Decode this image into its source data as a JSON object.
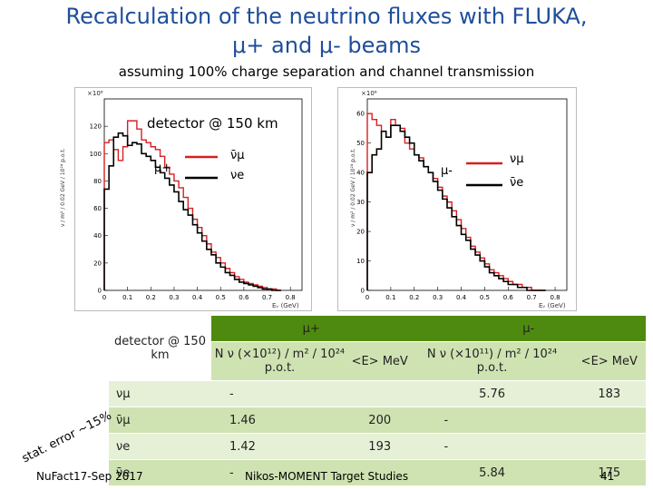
{
  "title_line1": "Recalculation of the neutrino fluxes with FLUKA,",
  "title_line2": "μ+ and μ- beams",
  "subtitle": "assuming 100% charge separation and channel transmission",
  "detector_note": "detector @ 150 km",
  "left_plot": {
    "exponent": "×10⁶",
    "ylabel": "ν / m² / 0.02 GeV / 10²⁴ p.o.t.",
    "xlabel": "Eᵥ (GeV)",
    "beam": "μ+",
    "legend": [
      "ν̄μ",
      "νe"
    ],
    "y_ticks": [
      "0",
      "20",
      "40",
      "60",
      "80",
      "100",
      "120"
    ],
    "x_ticks": [
      "0",
      "0.1",
      "0.2",
      "0.3",
      "0.4",
      "0.5",
      "0.6",
      "0.7",
      "0.8"
    ]
  },
  "right_plot": {
    "exponent": "×10⁶",
    "ylabel": "ν / m² / 0.02 GeV / 10²⁴ p.o.t.",
    "xlabel": "Eᵥ (GeV)",
    "beam": "μ-",
    "legend": [
      "νμ",
      "ν̄e"
    ],
    "y_ticks": [
      "0",
      "10",
      "20",
      "30",
      "40",
      "50",
      "60"
    ],
    "x_ticks": [
      "0",
      "0.1",
      "0.2",
      "0.3",
      "0.4",
      "0.5",
      "0.6",
      "0.7",
      "0.8"
    ]
  },
  "chart_data": [
    {
      "type": "line",
      "xlabel": "Eᵥ (GeV)",
      "ylabel": "ν / m² / 0.02 GeV / 10²⁴ p.o.t.",
      "xlim": [
        0,
        0.85
      ],
      "ylim": [
        0,
        140
      ],
      "x": [
        0.01,
        0.03,
        0.05,
        0.07,
        0.09,
        0.11,
        0.13,
        0.15,
        0.17,
        0.19,
        0.21,
        0.23,
        0.25,
        0.27,
        0.29,
        0.31,
        0.33,
        0.35,
        0.37,
        0.39,
        0.41,
        0.43,
        0.45,
        0.47,
        0.49,
        0.51,
        0.53,
        0.55,
        0.57,
        0.59,
        0.61,
        0.63,
        0.65,
        0.67,
        0.69,
        0.71,
        0.73,
        0.75
      ],
      "series": [
        {
          "name": "ν̄μ",
          "color": "#d62020",
          "values": [
            108,
            110,
            103,
            95,
            105,
            124,
            124,
            118,
            110,
            108,
            105,
            103,
            98,
            90,
            85,
            80,
            75,
            68,
            60,
            52,
            46,
            40,
            34,
            28,
            24,
            20,
            16,
            13,
            10,
            8,
            6,
            5,
            4,
            3,
            2,
            1,
            1,
            0
          ]
        },
        {
          "name": "νe",
          "color": "#000000",
          "values": [
            74,
            91,
            112,
            115,
            113,
            106,
            108,
            107,
            100,
            98,
            95,
            90,
            86,
            82,
            77,
            72,
            65,
            59,
            55,
            48,
            42,
            36,
            30,
            26,
            20,
            17,
            13,
            11,
            8,
            6,
            5,
            4,
            3,
            2,
            1,
            1,
            0,
            0
          ]
        }
      ]
    },
    {
      "type": "line",
      "xlabel": "Eᵥ (GeV)",
      "ylabel": "ν / m² / 0.02 GeV / 10²⁴ p.o.t.",
      "xlim": [
        0,
        0.85
      ],
      "ylim": [
        0,
        65
      ],
      "x": [
        0.01,
        0.03,
        0.05,
        0.07,
        0.09,
        0.11,
        0.13,
        0.15,
        0.17,
        0.19,
        0.21,
        0.23,
        0.25,
        0.27,
        0.29,
        0.31,
        0.33,
        0.35,
        0.37,
        0.39,
        0.41,
        0.43,
        0.45,
        0.47,
        0.49,
        0.51,
        0.53,
        0.55,
        0.57,
        0.59,
        0.61,
        0.63,
        0.65,
        0.67,
        0.69,
        0.71,
        0.73,
        0.75
      ],
      "series": [
        {
          "name": "νμ",
          "color": "#d62020",
          "values": [
            60,
            58,
            56,
            54,
            52,
            58,
            56,
            55,
            50,
            48,
            46,
            45,
            42,
            40,
            38,
            35,
            32,
            30,
            27,
            24,
            21,
            18,
            15,
            13,
            11,
            9,
            7,
            6,
            5,
            4,
            3,
            2,
            2,
            1,
            1,
            0,
            0,
            0
          ]
        },
        {
          "name": "ν̄e",
          "color": "#000000",
          "values": [
            40,
            46,
            48,
            54,
            52,
            56,
            56,
            54,
            52,
            50,
            46,
            44,
            42,
            40,
            37,
            34,
            31,
            28,
            25,
            22,
            19,
            17,
            14,
            12,
            10,
            8,
            6,
            5,
            4,
            3,
            2,
            2,
            1,
            1,
            0,
            0,
            0,
            0
          ]
        }
      ]
    }
  ],
  "table": {
    "corner": "detector @ 150 km",
    "beam_plus": "μ+",
    "beam_minus": "μ-",
    "col_n": "N ν (×10¹²) / m² / 10²⁴ p.o.t.",
    "col_n_minus": "N ν (×10¹¹) / m² / 10²⁴ p.o.t.",
    "col_e": "<E> MeV",
    "rows": [
      {
        "label": "νμ",
        "n_plus": "-",
        "e_plus": "",
        "n_minus": "5.76",
        "e_minus": "183"
      },
      {
        "label": "ν̄μ",
        "n_plus": "1.46",
        "e_plus": "200",
        "n_minus": "-",
        "e_minus": ""
      },
      {
        "label": "νe",
        "n_plus": "1.42",
        "e_plus": "193",
        "n_minus": "-",
        "e_minus": ""
      },
      {
        "label": "ν̄e",
        "n_plus": "-",
        "e_plus": "",
        "n_minus": "5.84",
        "e_minus": "175"
      }
    ]
  },
  "stat_error": "stat. error ~15%",
  "footer": {
    "left": "NuFact17-Sep 2017",
    "center": "Nikos-MOMENT Target Studies",
    "page": "41"
  }
}
